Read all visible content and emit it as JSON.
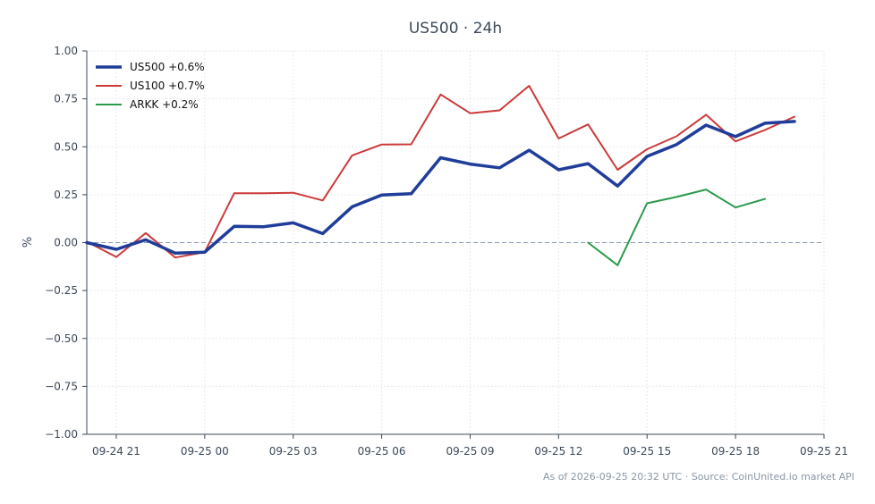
{
  "chart_data": {
    "type": "line",
    "title": "US500 · 24h",
    "ylabel": "%",
    "xlabel": "",
    "ylim": [
      -1.0,
      1.0
    ],
    "yticks": [
      -1.0,
      -0.75,
      -0.5,
      -0.25,
      0.0,
      0.25,
      0.5,
      0.75,
      1.0
    ],
    "ytick_labels": [
      "−1.00",
      "−0.75",
      "−0.50",
      "−0.25",
      "0.00",
      "0.25",
      "0.50",
      "0.75",
      "1.00"
    ],
    "xlim": [
      "09-24 20:00",
      "09-25 21:00"
    ],
    "xticks": [
      "09-24 21:00",
      "09-25 00:00",
      "09-25 03:00",
      "09-25 06:00",
      "09-25 09:00",
      "09-25 12:00",
      "09-25 15:00",
      "09-25 18:00",
      "09-25 21:00"
    ],
    "xtick_labels": [
      "09-24 21",
      "09-25 00",
      "09-25 03",
      "09-25 06",
      "09-25 09",
      "09-25 12",
      "09-25 15",
      "09-25 18",
      "09-25 21"
    ],
    "grid": true,
    "baseline": 0.0,
    "legend_position": "top-left",
    "series": [
      {
        "name": "US500 +0.6%",
        "color": "#1f3d99",
        "line_weight": "bold",
        "x": [
          "09-24 20:00",
          "09-24 21:00",
          "09-24 22:00",
          "09-24 23:00",
          "09-25 00:00",
          "09-25 01:00",
          "09-25 02:00",
          "09-25 03:00",
          "09-25 04:00",
          "09-25 05:00",
          "09-25 06:00",
          "09-25 07:00",
          "09-25 08:00",
          "09-25 09:00",
          "09-25 10:00",
          "09-25 11:00",
          "09-25 12:00",
          "09-25 13:00",
          "09-25 14:00",
          "09-25 15:00",
          "09-25 16:00",
          "09-25 17:00",
          "09-25 18:00",
          "09-25 19:00",
          "09-25 20:00"
        ],
        "y": [
          0.0,
          -0.035,
          0.015,
          -0.055,
          -0.05,
          0.085,
          0.083,
          0.103,
          0.047,
          0.187,
          0.248,
          0.255,
          0.443,
          0.41,
          0.39,
          0.482,
          0.38,
          0.412,
          0.295,
          0.45,
          0.512,
          0.613,
          0.553,
          0.623,
          0.632
        ]
      },
      {
        "name": "US100 +0.7%",
        "color": "#cc3a3a",
        "line_weight": "normal",
        "x": [
          "09-24 20:00",
          "09-24 21:00",
          "09-24 22:00",
          "09-24 23:00",
          "09-25 00:00",
          "09-25 01:00",
          "09-25 02:00",
          "09-25 03:00",
          "09-25 04:00",
          "09-25 05:00",
          "09-25 06:00",
          "09-25 07:00",
          "09-25 08:00",
          "09-25 09:00",
          "09-25 10:00",
          "09-25 11:00",
          "09-25 12:00",
          "09-25 13:00",
          "09-25 14:00",
          "09-25 15:00",
          "09-25 16:00",
          "09-25 17:00",
          "09-25 18:00",
          "09-25 19:00",
          "09-25 20:00"
        ],
        "y": [
          0.005,
          -0.075,
          0.05,
          -0.078,
          -0.05,
          0.258,
          0.258,
          0.26,
          0.22,
          0.455,
          0.512,
          0.513,
          0.773,
          0.675,
          0.69,
          0.818,
          0.543,
          0.617,
          0.38,
          0.487,
          0.555,
          0.667,
          0.528,
          0.588,
          0.657
        ]
      },
      {
        "name": "ARKK +0.2%",
        "color": "#2a9a4b",
        "line_weight": "normal",
        "x": [
          "09-25 13:00",
          "09-25 14:00",
          "09-25 15:00",
          "09-25 16:00",
          "09-25 17:00",
          "09-25 18:00",
          "09-25 19:00"
        ],
        "y": [
          0.0,
          -0.118,
          0.205,
          0.238,
          0.277,
          0.183,
          0.228
        ]
      }
    ]
  },
  "footer": "As of 2026-09-25 20:32 UTC · Source: CoinUnited.io market API"
}
